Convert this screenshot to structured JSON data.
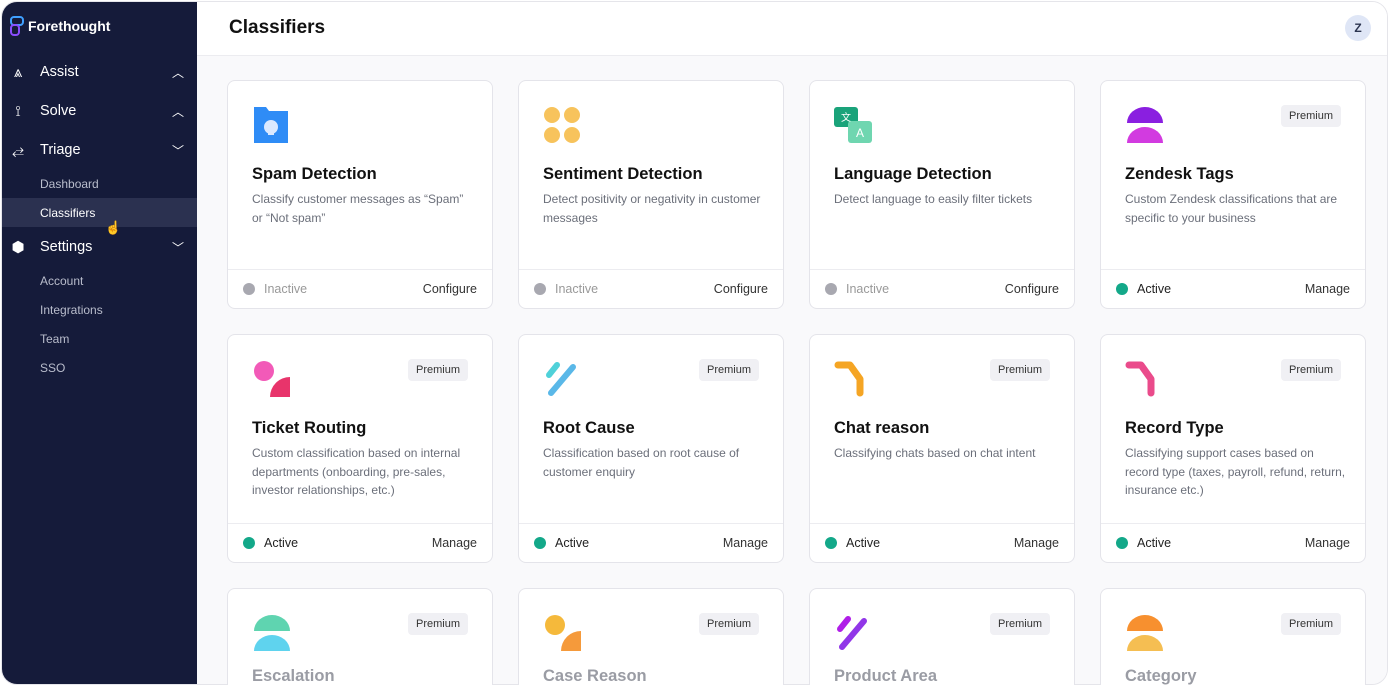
{
  "brand": "Forethought",
  "sidebar": {
    "sections": [
      {
        "label": "Assist",
        "icon": "assist-icon",
        "chevron": "up"
      },
      {
        "label": "Solve",
        "icon": "solve-icon",
        "chevron": "up"
      },
      {
        "label": "Triage",
        "icon": "triage-icon",
        "chevron": "down"
      },
      {
        "label": "Settings",
        "icon": "settings-icon",
        "chevron": "down"
      }
    ],
    "triage_items": [
      "Dashboard",
      "Classifiers"
    ],
    "settings_items": [
      "Account",
      "Integrations",
      "Team",
      "SSO"
    ],
    "active": "Classifiers"
  },
  "header": {
    "title": "Classifiers",
    "avatar": "Z"
  },
  "colors": {
    "active": "#13a889",
    "inactive": "#a8a8b0",
    "sidebar": "#151b3a"
  },
  "cards": [
    {
      "title": "Spam Detection",
      "desc": "Classify customer messages as “Spam” or “Not spam”",
      "status": "Inactive",
      "action": "Configure",
      "premium": ""
    },
    {
      "title": "Sentiment Detection",
      "desc": "Detect positivity or negativity in customer messages",
      "status": "Inactive",
      "action": "Configure",
      "premium": ""
    },
    {
      "title": "Language Detection",
      "desc": "Detect language to easily filter tickets",
      "status": "Inactive",
      "action": "Configure",
      "premium": ""
    },
    {
      "title": "Zendesk Tags",
      "desc": "Custom Zendesk classifications that are specific to your business",
      "status": "Active",
      "action": "Manage",
      "premium": "Premium"
    },
    {
      "title": "Ticket Routing",
      "desc": "Custom classification based on internal departments (onboarding, pre-sales, investor relationships, etc.)",
      "status": "Active",
      "action": "Manage",
      "premium": "Premium"
    },
    {
      "title": "Root Cause",
      "desc": "Classification based on root cause of customer enquiry",
      "status": "Active",
      "action": "Manage",
      "premium": "Premium"
    },
    {
      "title": "Chat reason",
      "desc": "Classifying chats based on chat intent",
      "status": "Active",
      "action": "Manage",
      "premium": "Premium"
    },
    {
      "title": "Record Type",
      "desc": "Classifying support cases based on record type (taxes, payroll, refund, return, insurance etc.)",
      "status": "Active",
      "action": "Manage",
      "premium": "Premium"
    },
    {
      "title": "Escalation",
      "premium": "Premium"
    },
    {
      "title": "Case Reason",
      "premium": "Premium"
    },
    {
      "title": "Product Area",
      "premium": "Premium"
    },
    {
      "title": "Category",
      "premium": "Premium"
    }
  ]
}
